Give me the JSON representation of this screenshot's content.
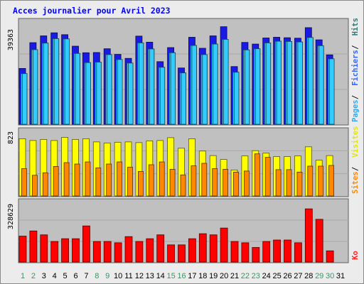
{
  "chart_data": {
    "type": "bar",
    "title": "Acces journalier pour Avril 2023",
    "categories": [
      "1",
      "2",
      "3",
      "4",
      "5",
      "6",
      "7",
      "8",
      "9",
      "10",
      "11",
      "12",
      "13",
      "14",
      "15",
      "16",
      "17",
      "18",
      "19",
      "20",
      "21",
      "22",
      "23",
      "24",
      "25",
      "26",
      "27",
      "28",
      "29",
      "30",
      "31"
    ],
    "weekend_days": [
      "1",
      "2",
      "8",
      "9",
      "15",
      "16",
      "22",
      "23",
      "29",
      "30"
    ],
    "panels": [
      {
        "name": "hits-panel",
        "y_tick_label": "39363",
        "ylim": [
          0,
          43000
        ],
        "axis_labels": [
          {
            "text": "Pages",
            "color": "#33aaee"
          },
          {
            "text": "Fichiers",
            "color": "#3366ff"
          },
          {
            "text": "Hits",
            "color": "#337777"
          }
        ],
        "series": [
          {
            "name": "Hits",
            "color": "#1a1ae6",
            "values": [
              23800,
              34800,
              37700,
              39000,
              38200,
              33300,
              30500,
              30600,
              32200,
              29800,
              28100,
              37600,
              35000,
              26700,
              32700,
              24000,
              37100,
              32400,
              37700,
              41600,
              24600,
              34900,
              34200,
              36800,
              37100,
              36900,
              36700,
              41200,
              36000,
              29600,
              null
            ]
          },
          {
            "name": "Fichiers",
            "color": "#33ccff",
            "values": [
              21600,
              31800,
              34600,
              36500,
              36400,
              30200,
              26300,
              26500,
              29700,
              27600,
              26100,
              34700,
              32100,
              24300,
              30500,
              21900,
              33600,
              29700,
              34200,
              36200,
              22200,
              31700,
              32200,
              34700,
              35400,
              35300,
              35100,
              37000,
              33500,
              27900,
              null
            ]
          },
          {
            "name": "Pages",
            "color": "#33ccff",
            "values": [
              21600,
              31800,
              34600,
              36500,
              36400,
              30200,
              26300,
              26500,
              29700,
              27600,
              26100,
              34700,
              32100,
              24300,
              30500,
              21900,
              33600,
              29700,
              34200,
              36200,
              22200,
              31700,
              32200,
              34700,
              35400,
              35300,
              35100,
              37000,
              33500,
              27900,
              null
            ]
          }
        ]
      },
      {
        "name": "visits-panel",
        "y_tick_label": "823",
        "ylim": [
          0,
          900
        ],
        "axis_labels": [
          {
            "text": "Sites",
            "color": "#ff8800"
          },
          {
            "text": "Visites",
            "color": "#e6e600"
          }
        ],
        "series": [
          {
            "name": "Visites",
            "color": "#ffff00",
            "values": [
              815,
              790,
              805,
              790,
              835,
              805,
              815,
              770,
              755,
              765,
              770,
              760,
              785,
              790,
              830,
              680,
              815,
              640,
              575,
              520,
              370,
              570,
              645,
              610,
              560,
              560,
              570,
              700,
              510,
              575,
              null
            ]
          },
          {
            "name": "Sites",
            "color": "#ff8800",
            "values": [
              390,
              295,
              330,
              420,
              475,
              455,
              485,
              400,
              455,
              485,
              410,
              350,
              445,
              485,
              380,
              300,
              430,
              465,
              390,
              380,
              340,
              355,
              600,
              550,
              375,
              375,
              340,
              425,
              425,
              435,
              null
            ]
          }
        ]
      },
      {
        "name": "ko-panel",
        "y_tick_label": "328629",
        "ylim": [
          0,
          360000
        ],
        "axis_labels": [
          {
            "text": "Ko",
            "color": "#ff2222"
          }
        ],
        "series": [
          {
            "name": "Ko",
            "color": "#ff0000",
            "values": [
              160000,
              192000,
              168000,
              127000,
              144000,
              144000,
              223000,
              127000,
              127000,
              119000,
              157000,
              127000,
              144000,
              168000,
              106000,
              106000,
              144000,
              175000,
              168000,
              210000,
              127000,
              119000,
              90000,
              127000,
              136000,
              136000,
              119000,
              328629,
              264000,
              69000,
              null
            ]
          }
        ]
      }
    ]
  },
  "colors": {
    "background": "#ececec",
    "plot_background": "#c0c0c0",
    "title": "#0000ff",
    "weekday_label": "#000000",
    "weekend_label": "#339966"
  }
}
